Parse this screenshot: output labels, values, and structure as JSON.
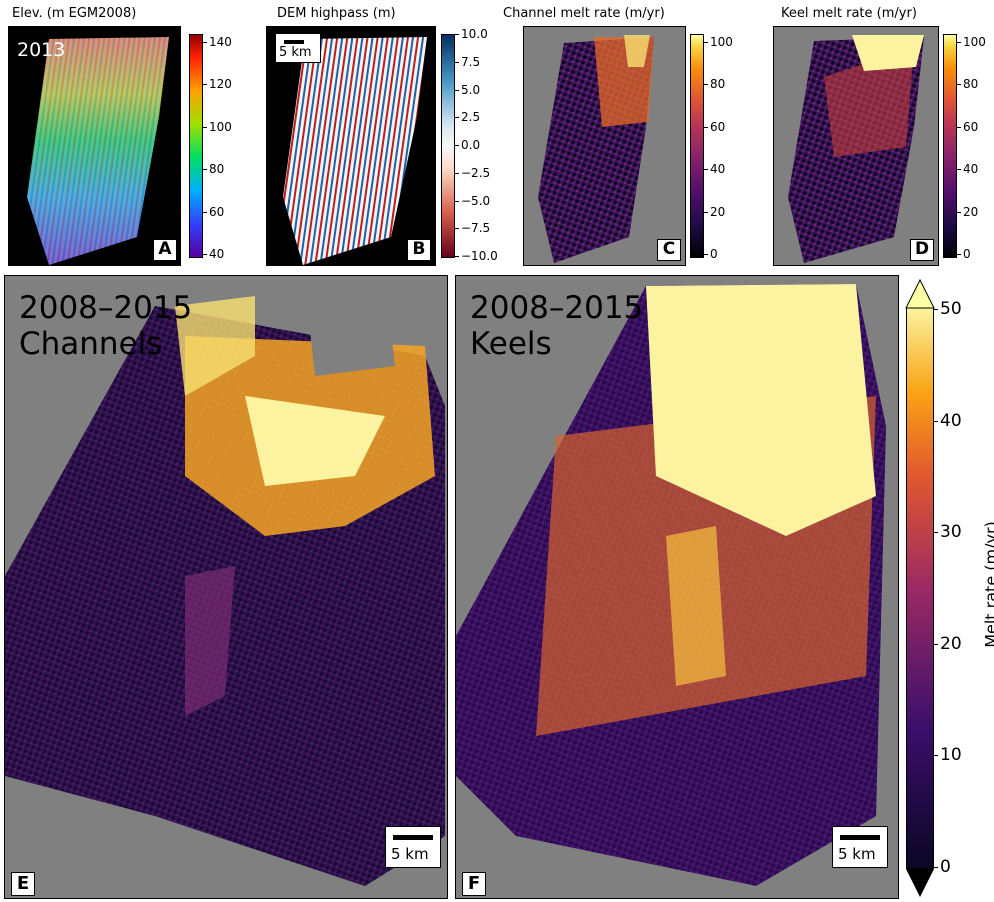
{
  "panels": {
    "A": {
      "title": "Elev. (m EGM2008)",
      "year": "2013",
      "letter": "A",
      "colorbar": {
        "ticks": [
          "140",
          "120",
          "100",
          "80",
          "60",
          "40"
        ],
        "min": 40,
        "max": 140
      }
    },
    "B": {
      "title": "DEM highpass (m)",
      "letter": "B",
      "scalebar": "5 km",
      "colorbar": {
        "ticks": [
          "10.0",
          "7.5",
          "5.0",
          "2.5",
          "0.0",
          "−2.5",
          "−5.0",
          "−7.5",
          "−10.0"
        ],
        "min": -10,
        "max": 10
      }
    },
    "C": {
      "title": "Channel melt rate (m/yr)",
      "letter": "C",
      "colorbar": {
        "ticks": [
          "100",
          "80",
          "60",
          "40",
          "20",
          "0"
        ],
        "min": 0,
        "max": 100
      }
    },
    "D": {
      "title": "Keel melt rate (m/yr)",
      "letter": "D",
      "colorbar": {
        "ticks": [
          "100",
          "80",
          "60",
          "40",
          "20",
          "0"
        ],
        "min": 0,
        "max": 100
      }
    },
    "E": {
      "line1": "2008–2015",
      "line2": "Channels",
      "letter": "E",
      "scalebar": "5 km"
    },
    "F": {
      "line1": "2008–2015",
      "line2": "Keels",
      "letter": "F",
      "scalebar": "5 km"
    }
  },
  "main_colorbar": {
    "label": "Melt rate (m/yr)",
    "ticks": [
      "50",
      "40",
      "30",
      "20",
      "10",
      "0"
    ],
    "min": 0,
    "max": 50
  },
  "colors": {
    "nodata": "#808080",
    "background_dem": "#000000"
  },
  "chart_data": [
    {
      "type": "heatmap",
      "panel": "A",
      "title": "Elev. (m EGM2008)",
      "colormap": "rainbow",
      "range": [
        40,
        140
      ],
      "annotation": "2013"
    },
    {
      "type": "heatmap",
      "panel": "B",
      "title": "DEM highpass (m)",
      "colormap": "RdBu",
      "range": [
        -10,
        10
      ],
      "scalebar": "5 km"
    },
    {
      "type": "heatmap",
      "panel": "C",
      "title": "Channel melt rate (m/yr)",
      "colormap": "inferno",
      "range": [
        0,
        100
      ]
    },
    {
      "type": "heatmap",
      "panel": "D",
      "title": "Keel melt rate (m/yr)",
      "colormap": "inferno",
      "range": [
        0,
        100
      ]
    },
    {
      "type": "heatmap",
      "panel": "E",
      "annotation": [
        "2008–2015",
        "Channels"
      ],
      "colormap": "inferno",
      "range": [
        0,
        50
      ],
      "scalebar": "5 km"
    },
    {
      "type": "heatmap",
      "panel": "F",
      "annotation": [
        "2008–2015",
        "Keels"
      ],
      "colormap": "inferno",
      "range": [
        0,
        50
      ],
      "scalebar": "5 km",
      "colorbar_label": "Melt rate (m/yr)"
    }
  ]
}
